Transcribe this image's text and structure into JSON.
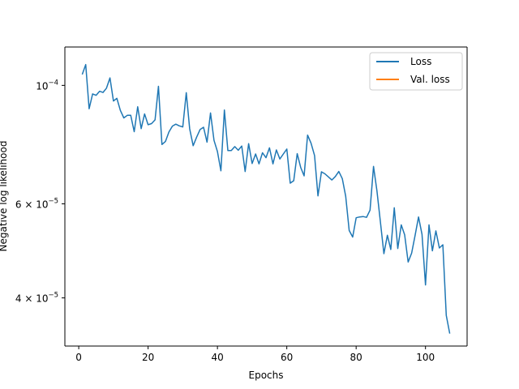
{
  "chart_data": {
    "type": "line",
    "xlabel": "Epochs",
    "ylabel": "Negative log likelihood",
    "y_scale": "log",
    "xlim": [
      -4,
      112
    ],
    "ylim": [
      3.25e-05,
      0.000118
    ],
    "x_ticks": [
      0,
      20,
      40,
      60,
      80,
      100
    ],
    "x_tick_labels": [
      "0",
      "20",
      "40",
      "60",
      "80",
      "100"
    ],
    "y_ticks": [
      {
        "value": 0.0001,
        "mantissa": "10",
        "exponent": "−4"
      },
      {
        "value": 6e-05,
        "mantissa": "6 × 10",
        "exponent": "−5"
      },
      {
        "value": 4e-05,
        "mantissa": "4 × 10",
        "exponent": "−5"
      }
    ],
    "grid": false,
    "legend": {
      "position": "top-right"
    },
    "series": [
      {
        "name": "Loss",
        "color": "#1f77b4",
        "x": [
          1,
          2,
          3,
          4,
          5,
          6,
          7,
          8,
          9,
          10,
          11,
          12,
          13,
          14,
          15,
          16,
          17,
          18,
          19,
          20,
          21,
          22,
          23,
          24,
          25,
          26,
          27,
          28,
          29,
          30,
          31,
          32,
          33,
          34,
          35,
          36,
          37,
          38,
          39,
          40,
          41,
          42,
          43,
          44,
          45,
          46,
          47,
          48,
          49,
          50,
          51,
          52,
          53,
          54,
          55,
          56,
          57,
          58,
          59,
          60,
          61,
          62,
          63,
          64,
          65,
          66,
          67,
          68,
          69,
          70,
          71,
          72,
          73,
          74,
          75,
          76,
          77,
          78,
          79,
          80,
          81,
          82,
          83,
          84,
          85,
          86,
          87,
          88,
          89,
          90,
          91,
          92,
          93,
          94,
          95,
          96,
          97,
          98,
          99,
          100,
          101,
          102,
          103,
          104,
          105,
          106,
          107
        ],
        "y": [
          0.0001048,
          0.0001094,
          9.04e-05,
          9.64e-05,
          9.58e-05,
          9.75e-05,
          9.7e-05,
          9.88e-05,
          0.0001033,
          9.35e-05,
          9.46e-05,
          8.98e-05,
          8.69e-05,
          8.79e-05,
          8.79e-05,
          8.19e-05,
          9.12e-05,
          8.3e-05,
          8.84e-05,
          8.44e-05,
          8.48e-05,
          8.62e-05,
          9.96e-05,
          7.75e-05,
          7.85e-05,
          8.18e-05,
          8.39e-05,
          8.46e-05,
          8.4e-05,
          8.36e-05,
          9.69e-05,
          8.29e-05,
          7.71e-05,
          8e-05,
          8.27e-05,
          8.35e-05,
          7.83e-05,
          8.88e-05,
          7.89e-05,
          7.52e-05,
          6.92e-05,
          8.99e-05,
          7.55e-05,
          7.55e-05,
          7.68e-05,
          7.56e-05,
          7.7e-05,
          6.9e-05,
          7.78e-05,
          7.14e-05,
          7.44e-05,
          7.13e-05,
          7.48e-05,
          7.32e-05,
          7.64e-05,
          7.13e-05,
          7.57e-05,
          7.28e-05,
          7.44e-05,
          7.6e-05,
          6.56e-05,
          6.63e-05,
          7.45e-05,
          7.02e-05,
          6.77e-05,
          8.07e-05,
          7.79e-05,
          7.39e-05,
          6.21e-05,
          6.89e-05,
          6.83e-05,
          6.74e-05,
          6.65e-05,
          6.75e-05,
          6.9e-05,
          6.69e-05,
          6.2e-05,
          5.35e-05,
          5.2e-05,
          5.65e-05,
          5.67e-05,
          5.68e-05,
          5.66e-05,
          5.84e-05,
          7.05e-05,
          6.35e-05,
          5.55e-05,
          4.84e-05,
          5.24e-05,
          4.93e-05,
          5.9e-05,
          4.95e-05,
          5.48e-05,
          5.25e-05,
          4.67e-05,
          4.85e-05,
          5.24e-05,
          5.67e-05,
          5.26e-05,
          4.23e-05,
          5.48e-05,
          4.9e-05,
          5.34e-05,
          4.96e-05,
          5.03e-05,
          3.71e-05,
          3.43e-05
        ]
      },
      {
        "name": "Val. loss",
        "color": "#ff7f0e",
        "x": [],
        "y": []
      }
    ]
  }
}
